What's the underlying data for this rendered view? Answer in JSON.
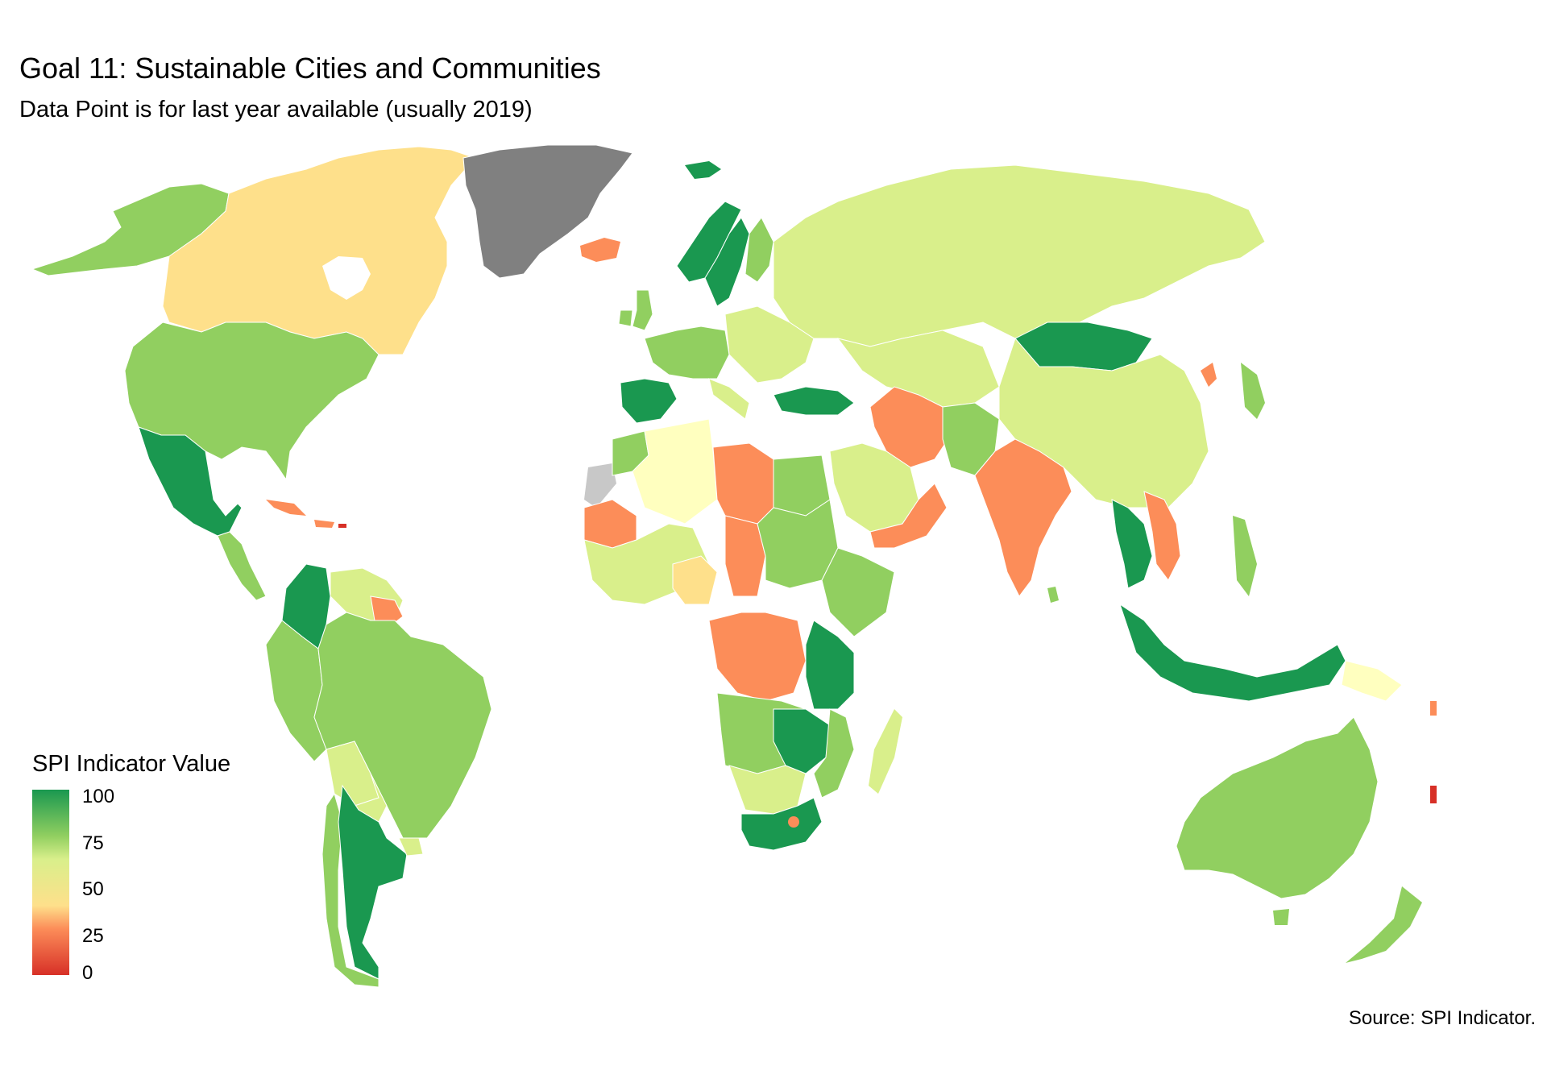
{
  "title": "Goal 11: Sustainable Cities and Communities",
  "subtitle": "Data Point is for last year available (usually 2019)",
  "caption": "Source: SPI Indicator.",
  "legend": {
    "title": "SPI Indicator Value",
    "ticks": [
      "100",
      "75",
      "50",
      "25",
      "0"
    ]
  },
  "colors": {
    "scale_100": "#1a9850",
    "scale_75": "#91cf60",
    "scale_62": "#d9ef8b",
    "scale_50": "#ffffbf",
    "scale_37": "#fee08b",
    "scale_25": "#fc8d59",
    "scale_0": "#d73027",
    "no_data": "#808080",
    "missing": "#c8c8c8"
  },
  "map_regions": [
    {
      "region": "Alaska",
      "level": "scale_75"
    },
    {
      "region": "Canada",
      "level": "scale_37"
    },
    {
      "region": "Greenland",
      "level": "no_data"
    },
    {
      "region": "United States",
      "level": "scale_75"
    },
    {
      "region": "Mexico",
      "level": "scale_100"
    },
    {
      "region": "Caribbean",
      "level": "scale_25"
    },
    {
      "region": "Colombia",
      "level": "scale_100"
    },
    {
      "region": "Brazil",
      "level": "scale_75"
    },
    {
      "region": "Argentina",
      "level": "scale_100"
    },
    {
      "region": "Bolivia",
      "level": "scale_62"
    },
    {
      "region": "Iceland",
      "level": "scale_25"
    },
    {
      "region": "Scandinavia",
      "level": "scale_100"
    },
    {
      "region": "Europe",
      "level": "scale_75"
    },
    {
      "region": "Spain",
      "level": "scale_100"
    },
    {
      "region": "Turkey",
      "level": "scale_100"
    },
    {
      "region": "Russia",
      "level": "scale_62"
    },
    {
      "region": "Mongolia",
      "level": "scale_100"
    },
    {
      "region": "China",
      "level": "scale_62"
    },
    {
      "region": "Iran",
      "level": "scale_25"
    },
    {
      "region": "India",
      "level": "scale_25"
    },
    {
      "region": "Saudi Arabia",
      "level": "scale_62"
    },
    {
      "region": "Algeria",
      "level": "scale_50"
    },
    {
      "region": "Libya",
      "level": "scale_25"
    },
    {
      "region": "Chad",
      "level": "scale_25"
    },
    {
      "region": "Sudan",
      "level": "scale_75"
    },
    {
      "region": "DR Congo",
      "level": "scale_25"
    },
    {
      "region": "Tanzania",
      "level": "scale_100"
    },
    {
      "region": "South Africa",
      "level": "scale_100"
    },
    {
      "region": "Madagascar",
      "level": "scale_62"
    },
    {
      "region": "Southeast Asia",
      "level": "scale_100"
    },
    {
      "region": "Indonesia",
      "level": "scale_100"
    },
    {
      "region": "Papua New Guinea",
      "level": "scale_50"
    },
    {
      "region": "Australia",
      "level": "scale_75"
    },
    {
      "region": "New Zealand",
      "level": "scale_75"
    }
  ]
}
